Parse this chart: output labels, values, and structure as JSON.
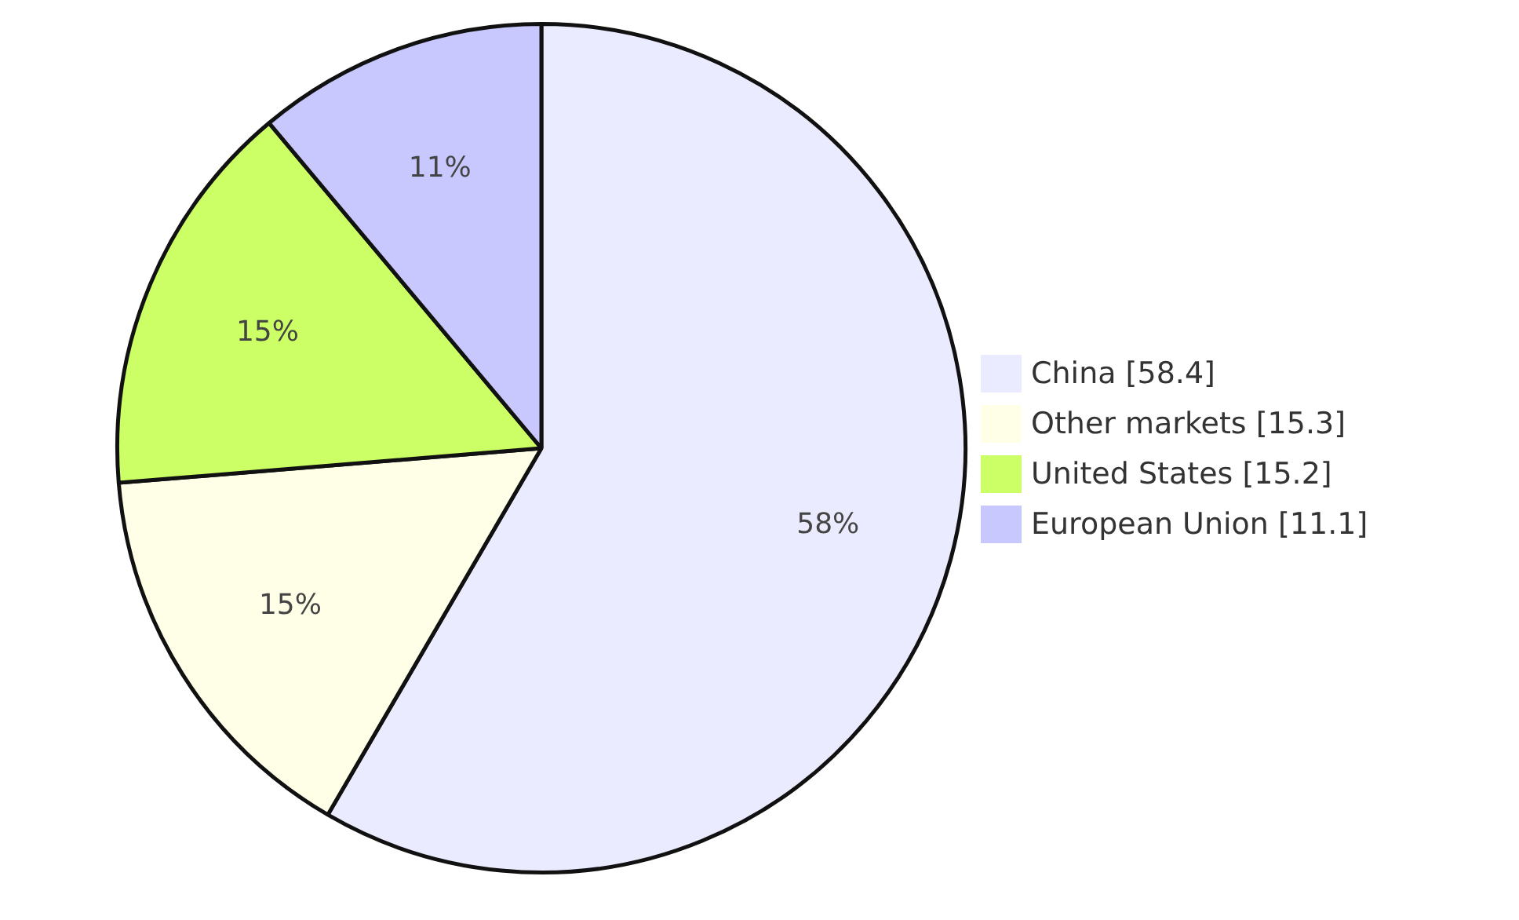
{
  "chart_data": {
    "type": "pie",
    "categories": [
      "China [58.4]",
      "Other markets [15.3]",
      "United States [15.2]",
      "European Union [11.1]"
    ],
    "values": [
      58.4,
      15.3,
      15.2,
      11.1
    ],
    "colors": [
      "#ebebff",
      "#ffffe8",
      "#ccff66",
      "#c8c8ff"
    ],
    "value_labels": [
      "58%",
      "15%",
      "15%",
      "11%"
    ],
    "legend": "right"
  }
}
